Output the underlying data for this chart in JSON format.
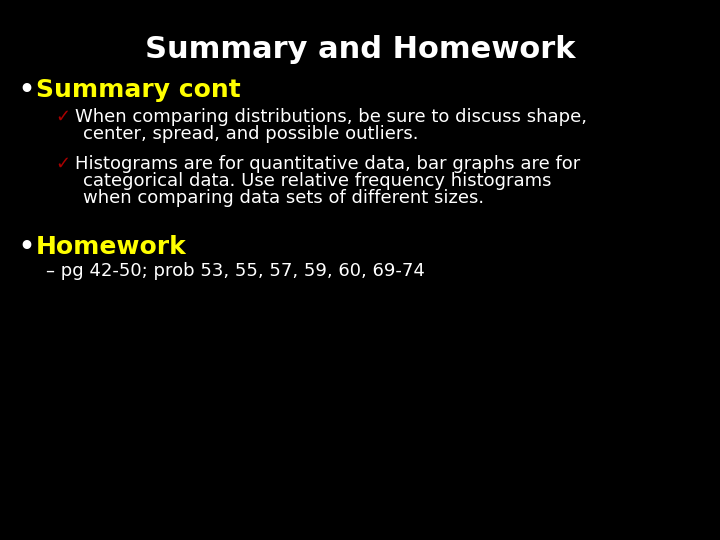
{
  "background_color": "#000000",
  "title": "Summary and Homework",
  "title_color": "#ffffff",
  "title_fontsize": 22,
  "bullet1_text": "Summary cont",
  "bullet1_color": "#ffff00",
  "bullet1_fontsize": 18,
  "check_color": "#aa0000",
  "check1_line1": "When comparing distributions, be sure to discuss shape,",
  "check1_line2": "center, spread, and possible outliers.",
  "check2_line1": "Histograms are for quantitative data, bar graphs are for",
  "check2_line2": "categorical data. Use relative frequency histograms",
  "check2_line3": "when comparing data sets of different sizes.",
  "body_color": "#ffffff",
  "body_fontsize": 13,
  "bullet2_text": "Homework",
  "bullet2_color": "#ffff00",
  "bullet2_fontsize": 18,
  "hw_text": "– pg 42-50; prob 53, 55, 57, 59, 60, 69-74",
  "hw_color": "#ffffff",
  "hw_fontsize": 13,
  "bullet_color": "#ffffff"
}
